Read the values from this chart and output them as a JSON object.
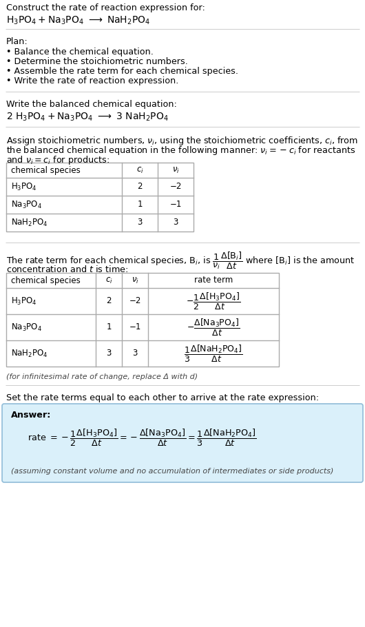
{
  "bg_color": "#ffffff",
  "text_color": "#000000",
  "title_line": "Construct the rate of reaction expression for:",
  "plan_header": "Plan:",
  "plan_items": [
    "• Balance the chemical equation.",
    "• Determine the stoichiometric numbers.",
    "• Assemble the rate term for each chemical species.",
    "• Write the rate of reaction expression."
  ],
  "balanced_header": "Write the balanced chemical equation:",
  "assign_text1": "Assign stoichiometric numbers, $\\nu_i$, using the stoichiometric coefficients, $c_i$, from",
  "assign_text2": "the balanced chemical equation in the following manner: $\\nu_i = -c_i$ for reactants",
  "assign_text3": "and $\\nu_i = c_i$ for products:",
  "table1_headers": [
    "chemical species",
    "$c_i$",
    "$\\nu_i$"
  ],
  "table1_rows": [
    [
      "$\\mathrm{H_3PO_4}$",
      "2",
      "−2"
    ],
    [
      "$\\mathrm{Na_3PO_4}$",
      "1",
      "−1"
    ],
    [
      "$\\mathrm{NaH_2PO_4}$",
      "3",
      "3"
    ]
  ],
  "rate_text2": "concentration and $t$ is time:",
  "table2_headers": [
    "chemical species",
    "$c_i$",
    "$\\nu_i$",
    "rate term"
  ],
  "table2_rows_plain": [
    [
      "$\\mathrm{H_3PO_4}$",
      "2",
      "−2"
    ],
    [
      "$\\mathrm{Na_3PO_4}$",
      "1",
      "−1"
    ],
    [
      "$\\mathrm{NaH_2PO_4}$",
      "3",
      "3"
    ]
  ],
  "table2_rate_terms": [
    "$-\\dfrac{1}{2}\\dfrac{\\Delta[\\mathrm{H_3PO_4}]}{\\Delta t}$",
    "$-\\dfrac{\\Delta[\\mathrm{Na_3PO_4}]}{\\Delta t}$",
    "$\\dfrac{1}{3}\\dfrac{\\Delta[\\mathrm{NaH_2PO_4}]}{\\Delta t}$"
  ],
  "infinitesimal_note": "(for infinitesimal rate of change, replace Δ with d)",
  "set_text": "Set the rate terms equal to each other to arrive at the rate expression:",
  "answer_box_color": "#daf0fa",
  "answer_border_color": "#90bcd8",
  "answer_label": "Answer:",
  "answer_note": "(assuming constant volume and no accumulation of intermediates or side products)"
}
